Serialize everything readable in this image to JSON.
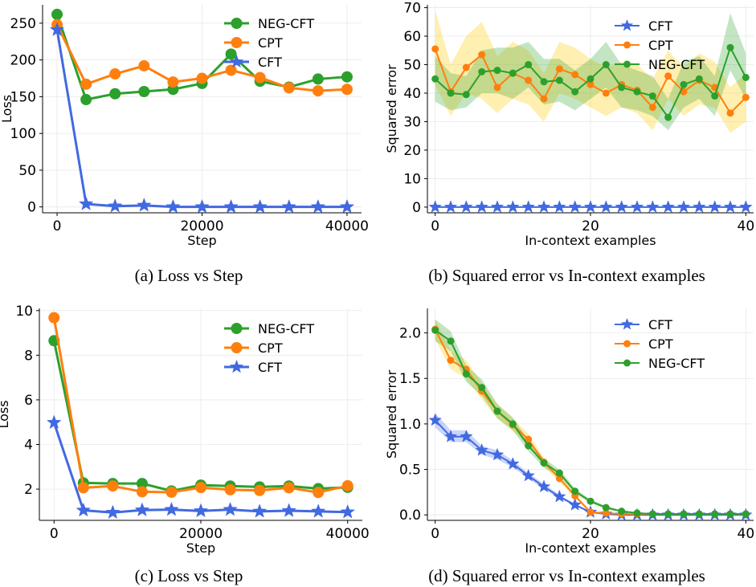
{
  "captions": {
    "a": "(a) Loss vs Step",
    "b": "(b) Squared error vs In-context examples",
    "c": "(c) Loss vs Step",
    "d": "(d) Squared error vs In-context examples"
  },
  "colors": {
    "NEG-CFT": "#2ca02c",
    "CPT": "#ff7f0e",
    "CFT": "#4169e1"
  },
  "chart_data": [
    {
      "type": "line",
      "title": "",
      "xlabel": "Step",
      "ylabel": "Loss",
      "xlim": [
        -2000,
        42000
      ],
      "ylim": [
        -8,
        275
      ],
      "xticks": [
        0,
        20000,
        40000
      ],
      "yticks": [
        0,
        50,
        100,
        150,
        200,
        250
      ],
      "grid": true,
      "legend": "top-right",
      "legend_order": [
        "NEG-CFT",
        "CPT",
        "CFT"
      ],
      "x": [
        0,
        4000,
        8000,
        12000,
        16000,
        20000,
        24000,
        28000,
        32000,
        36000,
        40000
      ],
      "series": [
        {
          "name": "NEG-CFT",
          "marker": "circle",
          "values": [
            262,
            146,
            154,
            157,
            160,
            168,
            208,
            171,
            163,
            174,
            177
          ]
        },
        {
          "name": "CPT",
          "marker": "circle",
          "values": [
            248,
            167,
            181,
            192,
            170,
            175,
            186,
            176,
            162,
            158,
            160
          ]
        },
        {
          "name": "CFT",
          "marker": "star",
          "values": [
            241,
            4,
            1,
            2,
            0,
            0,
            0,
            0,
            0,
            0,
            0
          ]
        }
      ]
    },
    {
      "type": "line",
      "title": "",
      "xlabel": "In-context examples",
      "ylabel": "Squared error",
      "xlim": [
        -1,
        41
      ],
      "ylim": [
        -2,
        71
      ],
      "xticks": [
        0,
        20,
        40
      ],
      "yticks": [
        0,
        10,
        20,
        30,
        40,
        50,
        60,
        70
      ],
      "grid": true,
      "legend": "top-right",
      "legend_order": [
        "CFT",
        "CPT",
        "NEG-CFT"
      ],
      "x": [
        0,
        2,
        4,
        6,
        8,
        10,
        12,
        14,
        16,
        18,
        20,
        22,
        24,
        26,
        28,
        30,
        32,
        34,
        36,
        38,
        40
      ],
      "series": [
        {
          "name": "CFT",
          "marker": "star",
          "values": [
            0,
            0,
            0,
            0,
            0,
            0,
            0,
            0,
            0,
            0,
            0,
            0,
            0,
            0,
            0,
            0,
            0,
            0,
            0,
            0,
            0
          ]
        },
        {
          "name": "CPT",
          "marker": "circle",
          "values": [
            55.5,
            40.5,
            49,
            53.5,
            42,
            47,
            44.5,
            38,
            48.5,
            46.5,
            43,
            40,
            43,
            41,
            35,
            46,
            40.5,
            44.5,
            42,
            33,
            38.5
          ],
          "lower": [
            43,
            32,
            40,
            38,
            33,
            38,
            36,
            30,
            40,
            38,
            35,
            32,
            35,
            33,
            27,
            38,
            32,
            36,
            35,
            26,
            30
          ],
          "upper": [
            69,
            50,
            60,
            65,
            53,
            58,
            55,
            47,
            58,
            56,
            52,
            49,
            51,
            50,
            45,
            55,
            49,
            54,
            51,
            42,
            47
          ]
        },
        {
          "name": "NEG-CFT",
          "marker": "circle",
          "values": [
            45,
            40,
            39.5,
            47.5,
            48,
            47,
            50,
            44,
            44.5,
            40.5,
            45,
            50,
            42,
            40.5,
            39,
            31.5,
            43,
            45,
            39,
            56,
            45.5
          ],
          "lower": [
            37,
            34,
            35,
            40,
            40,
            38,
            42,
            36,
            37,
            34,
            38,
            42,
            35,
            34,
            32,
            27,
            35,
            38,
            32,
            48,
            38
          ],
          "upper": [
            53,
            47,
            46,
            55,
            56,
            56,
            58,
            52,
            52,
            48,
            52,
            58,
            50,
            48,
            46,
            38,
            51,
            53,
            46,
            68,
            54
          ]
        }
      ]
    },
    {
      "type": "line",
      "title": "",
      "xlabel": "Step",
      "ylabel": "Loss",
      "xlim": [
        -2000,
        42000
      ],
      "ylim": [
        0.6,
        10.1
      ],
      "xticks": [
        0,
        20000,
        40000
      ],
      "yticks": [
        2,
        4,
        6,
        8,
        10
      ],
      "grid": true,
      "legend": "top-right",
      "legend_order": [
        "NEG-CFT",
        "CPT",
        "CFT"
      ],
      "x": [
        0,
        4000,
        8000,
        12000,
        16000,
        20000,
        24000,
        28000,
        32000,
        36000,
        40000
      ],
      "series": [
        {
          "name": "NEG-CFT",
          "marker": "circle",
          "values": [
            8.65,
            2.28,
            2.25,
            2.25,
            1.92,
            2.18,
            2.14,
            2.1,
            2.14,
            2.02,
            2.08
          ]
        },
        {
          "name": "CPT",
          "marker": "circle",
          "values": [
            9.68,
            2.06,
            2.14,
            1.88,
            1.86,
            2.07,
            1.97,
            1.94,
            2.06,
            1.85,
            2.15
          ]
        },
        {
          "name": "CFT",
          "marker": "star",
          "values": [
            4.98,
            1.05,
            0.95,
            1.06,
            1.08,
            1.02,
            1.08,
            1.0,
            1.03,
            1.0,
            0.97
          ]
        }
      ]
    },
    {
      "type": "line",
      "title": "",
      "xlabel": "In-context examples",
      "ylabel": "Squared error",
      "xlim": [
        -1,
        41
      ],
      "ylim": [
        -0.06,
        2.27
      ],
      "xticks": [
        0,
        20,
        40
      ],
      "yticks": [
        0.0,
        0.5,
        1.0,
        1.5,
        2.0
      ],
      "grid": true,
      "legend": "top-right",
      "legend_order": [
        "CFT",
        "CPT",
        "NEG-CFT"
      ],
      "x": [
        0,
        2,
        4,
        6,
        8,
        10,
        12,
        14,
        16,
        18,
        20,
        22,
        24,
        26,
        28,
        30,
        32,
        34,
        36,
        38,
        40
      ],
      "series": [
        {
          "name": "CFT",
          "marker": "star",
          "values": [
            1.04,
            0.86,
            0.86,
            0.71,
            0.66,
            0.56,
            0.43,
            0.31,
            0.2,
            0.11,
            0.03,
            0.01,
            0.0,
            0.0,
            0.0,
            0.0,
            0.0,
            0.0,
            0.0,
            0.0,
            0.0
          ],
          "lower": [
            0.96,
            0.8,
            0.8,
            0.66,
            0.61,
            0.52,
            0.4,
            0.28,
            0.18,
            0.1,
            0.02,
            0.005,
            0.0,
            0.0,
            0.0,
            0.0,
            0.0,
            0.0,
            0.0,
            0.0,
            0.0
          ],
          "upper": [
            1.12,
            0.93,
            0.93,
            0.76,
            0.71,
            0.6,
            0.46,
            0.34,
            0.22,
            0.12,
            0.04,
            0.015,
            0.0,
            0.0,
            0.0,
            0.0,
            0.0,
            0.0,
            0.0,
            0.0,
            0.0
          ]
        },
        {
          "name": "CPT",
          "marker": "circle",
          "values": [
            2.04,
            1.7,
            1.6,
            1.36,
            1.14,
            0.99,
            0.83,
            0.58,
            0.4,
            0.21,
            0.03,
            0.02,
            0.01,
            0.01,
            0.01,
            0.01,
            0.01,
            0.01,
            0.01,
            0.01,
            0.01
          ],
          "lower": [
            1.93,
            1.6,
            1.5,
            1.27,
            1.06,
            0.92,
            0.77,
            0.53,
            0.36,
            0.18,
            0.02,
            0.01,
            0.0,
            0.0,
            0.0,
            0.0,
            0.0,
            0.0,
            0.0,
            0.0,
            0.0
          ],
          "upper": [
            2.15,
            1.81,
            1.7,
            1.45,
            1.22,
            1.06,
            0.89,
            0.63,
            0.44,
            0.24,
            0.04,
            0.03,
            0.02,
            0.02,
            0.02,
            0.02,
            0.02,
            0.02,
            0.02,
            0.02,
            0.02
          ]
        },
        {
          "name": "NEG-CFT",
          "marker": "circle",
          "values": [
            2.03,
            1.91,
            1.55,
            1.4,
            1.14,
            1.0,
            0.76,
            0.57,
            0.46,
            0.26,
            0.15,
            0.08,
            0.04,
            0.02,
            0.01,
            0.01,
            0.01,
            0.01,
            0.01,
            0.01,
            0.01
          ],
          "lower": [
            1.91,
            1.8,
            1.46,
            1.31,
            1.06,
            0.93,
            0.7,
            0.52,
            0.42,
            0.23,
            0.13,
            0.06,
            0.03,
            0.01,
            0.0,
            0.0,
            0.0,
            0.0,
            0.0,
            0.0,
            0.0
          ],
          "upper": [
            2.15,
            2.02,
            1.64,
            1.49,
            1.22,
            1.07,
            0.82,
            0.62,
            0.5,
            0.29,
            0.17,
            0.1,
            0.05,
            0.03,
            0.02,
            0.02,
            0.02,
            0.02,
            0.02,
            0.02,
            0.02
          ]
        }
      ]
    }
  ]
}
